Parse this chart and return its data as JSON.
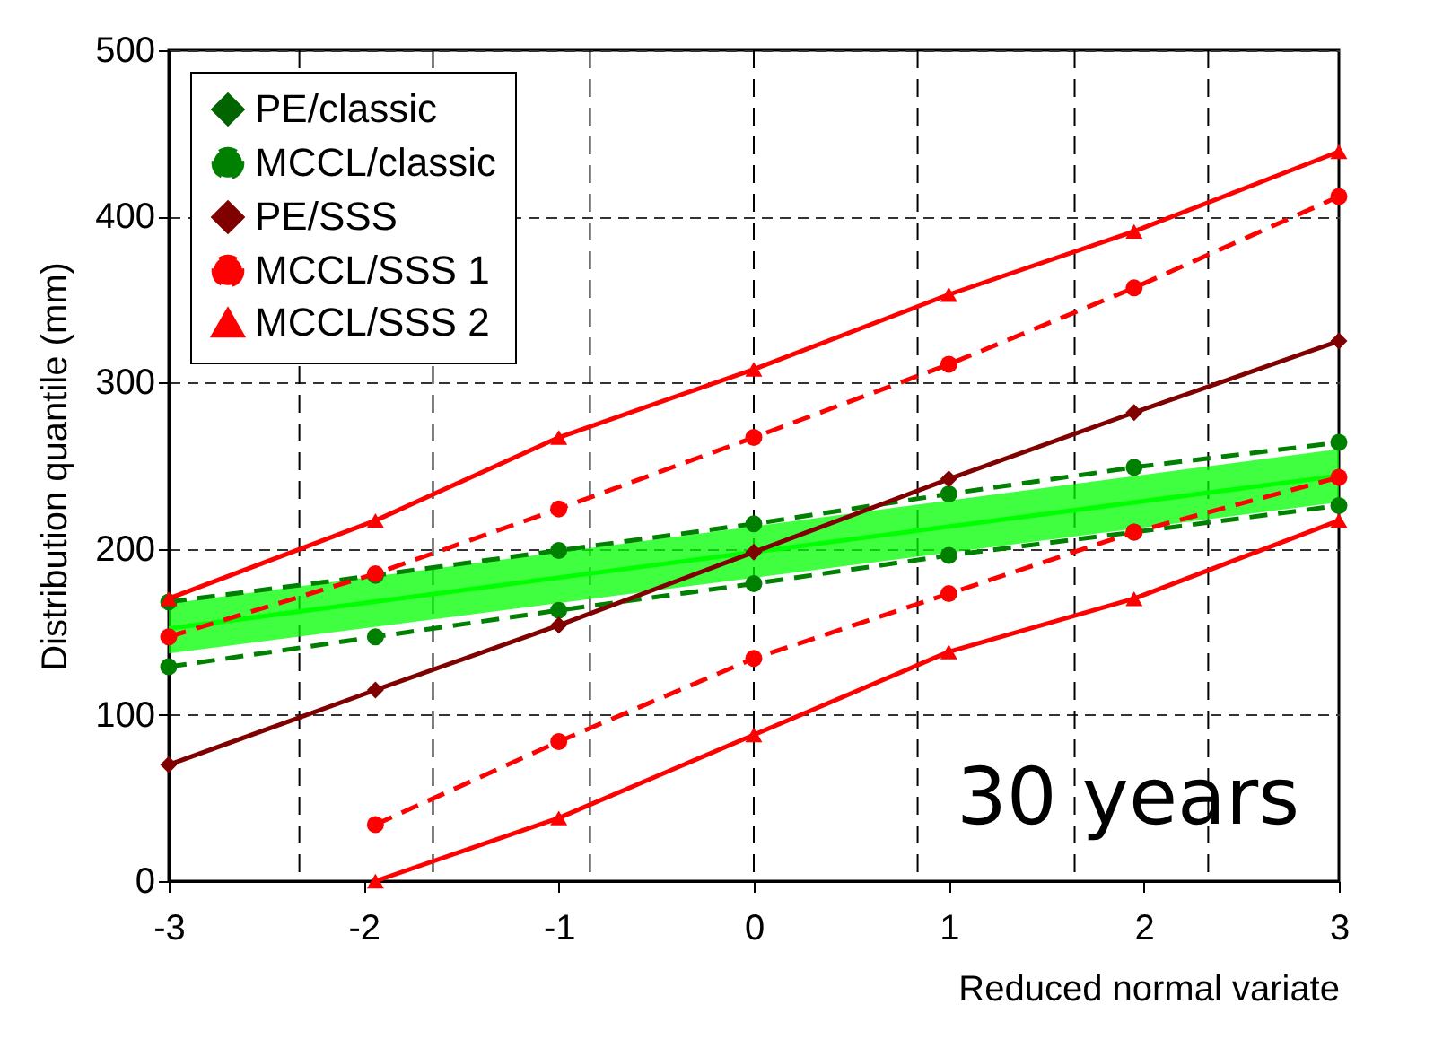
{
  "chart_data": {
    "type": "line",
    "xlabel": "Reduced normal variate",
    "ylabel": "Distribution quantile (mm)",
    "x": [
      -3,
      -1.94,
      -1,
      0,
      1,
      1.95,
      3
    ],
    "xlim": [
      -3,
      3
    ],
    "xticks": [
      -3,
      -2,
      -1,
      0,
      1,
      2,
      3
    ],
    "ylim": [
      0,
      500
    ],
    "yticks": [
      0,
      100,
      200,
      300,
      400,
      500
    ],
    "grid": "y",
    "legend": "top left",
    "series": [
      {
        "color": "#00ff00",
        "marker": "none",
        "x": [
          -3,
          3
        ],
        "values": [
          152,
          244
        ],
        "lower": [
          137,
          228
        ],
        "upper": [
          167,
          260
        ]
      },
      {
        "name": "PE/classic",
        "color": "#006400",
        "marker": "diamond",
        "line_style": "solid",
        "values": [
          null,
          null,
          null,
          null,
          null,
          null,
          null
        ]
      },
      {
        "name": "MCCL/classic",
        "color": "#008000",
        "marker": "circle",
        "line_style": "dashed",
        "values": [
          168,
          184,
          199,
          215,
          233,
          249,
          264
        ]
      },
      {
        "color": "#008000",
        "marker": "circle",
        "line_style": "dashed",
        "values": [
          129,
          147,
          163,
          179,
          196,
          210,
          226
        ]
      },
      {
        "name": "PE/SSS",
        "color": "#800000",
        "marker": "diamond",
        "line_style": "solid",
        "values": [
          70,
          115,
          154,
          198,
          242,
          282,
          325
        ]
      },
      {
        "name": "MCCL/SSS 1",
        "color": "#ff0000",
        "marker": "circle",
        "line_style": "dashed",
        "values": [
          147,
          185,
          224,
          267,
          311,
          357,
          412
        ]
      },
      {
        "color": "#ff0000",
        "marker": "circle",
        "line_style": "dashed",
        "values": [
          null,
          34,
          84,
          134,
          173,
          210,
          243
        ]
      },
      {
        "name": "MCCL/SSS 2",
        "color": "#ff0000",
        "marker": "triangle",
        "line_style": "solid",
        "values": [
          170,
          217,
          267,
          308,
          353,
          391,
          439
        ]
      },
      {
        "color": "#ff0000",
        "marker": "triangle",
        "line_style": "solid",
        "values": [
          null,
          0,
          38,
          88,
          138,
          170,
          217
        ]
      }
    ],
    "ref_lines": [
      {
        "axis": "x",
        "value": -2.33,
        "color": "#000000",
        "line_style": "dashed"
      },
      {
        "axis": "x",
        "value": -1.645,
        "color": "#000000",
        "line_style": "dashed"
      },
      {
        "axis": "x",
        "value": -0.84,
        "color": "#000000",
        "line_style": "dashed"
      },
      {
        "axis": "x",
        "value": 0,
        "color": "#000000",
        "line_style": "dashed"
      },
      {
        "axis": "x",
        "value": 0.84,
        "color": "#000000",
        "line_style": "dashed"
      },
      {
        "axis": "x",
        "value": 1.645,
        "color": "#000000",
        "line_style": "dashed"
      },
      {
        "axis": "x",
        "value": 2.33,
        "color": "#000000",
        "line_style": "dashed"
      }
    ],
    "annotations": [
      "30 years"
    ]
  }
}
